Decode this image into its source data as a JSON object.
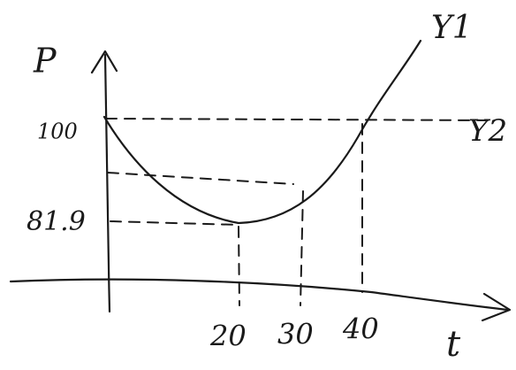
{
  "axes": {
    "y_label": "P",
    "x_label": "t"
  },
  "y_labels": [
    "100",
    "81.9"
  ],
  "x_labels": [
    "20",
    "30",
    "40"
  ],
  "curves": {
    "y1": "Y1",
    "y2": "Y2"
  }
}
